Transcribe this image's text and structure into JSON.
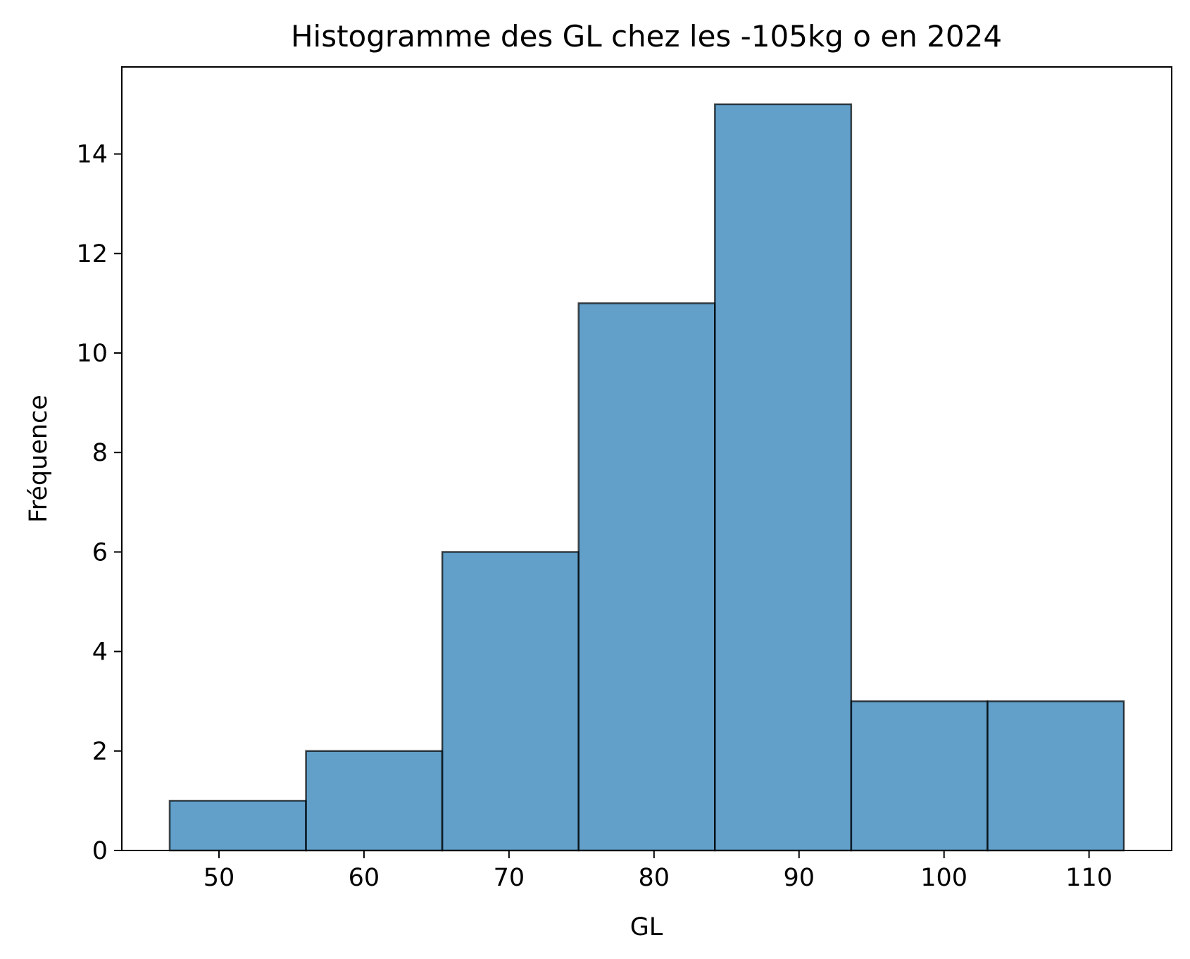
{
  "chart_data": {
    "type": "bar",
    "title": "Histogramme des GL chez les -105kg o en 2024",
    "xlabel": "GL",
    "ylabel": "Fréquence",
    "bins": [
      {
        "start": 46.6,
        "end": 56.0,
        "count": 1
      },
      {
        "start": 56.0,
        "end": 65.4,
        "count": 2
      },
      {
        "start": 65.4,
        "end": 74.8,
        "count": 6
      },
      {
        "start": 74.8,
        "end": 84.2,
        "count": 11
      },
      {
        "start": 84.2,
        "end": 93.6,
        "count": 15
      },
      {
        "start": 93.6,
        "end": 103.0,
        "count": 3
      },
      {
        "start": 103.0,
        "end": 112.4,
        "count": 3
      }
    ],
    "xlim": [
      43.3,
      115.7
    ],
    "ylim": [
      0,
      15.75
    ],
    "xticks": [
      50,
      60,
      70,
      80,
      90,
      100,
      110
    ],
    "yticks": [
      0,
      2,
      4,
      6,
      8,
      10,
      12,
      14
    ],
    "bar_color": "#1f77b4",
    "bar_alpha": 0.7,
    "edge_color": "#000000",
    "grid": false
  }
}
